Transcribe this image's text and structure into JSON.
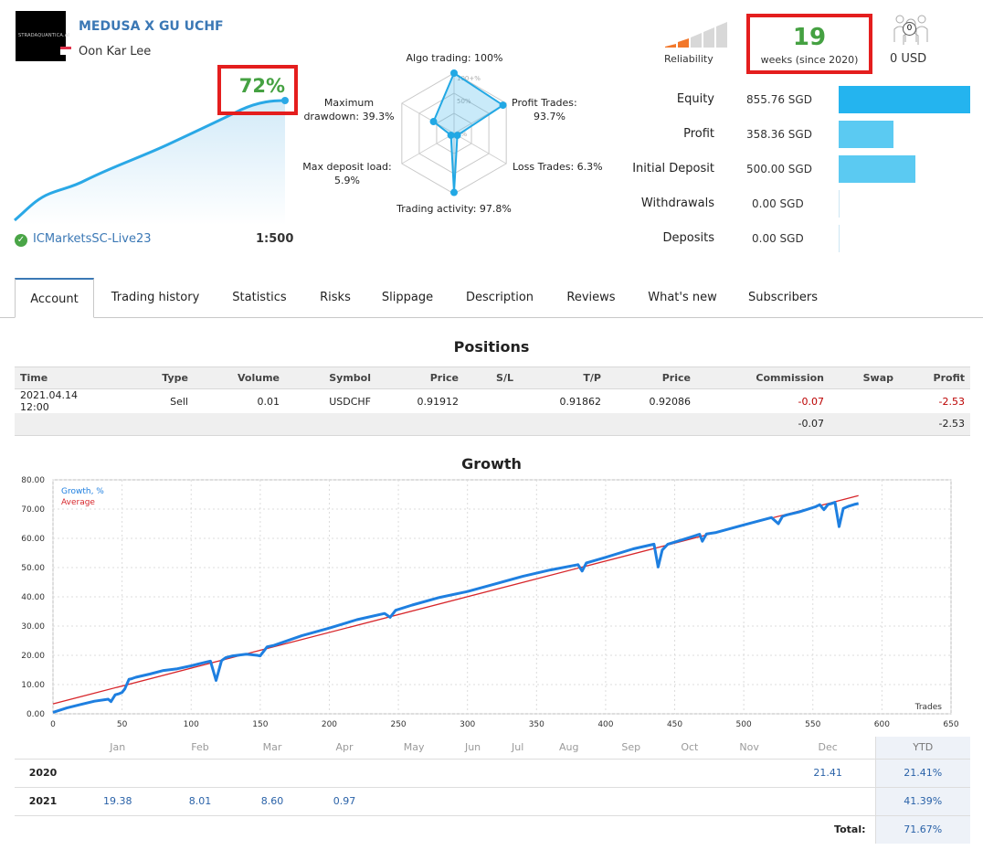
{
  "header": {
    "logo_text": "STRADAQUANTICA.AI",
    "signal_name": "MEDUSA X GU UCHF",
    "owner": "Oon Kar Lee",
    "broker": "ICMarketsSC-Live23",
    "leverage": "1:500",
    "growth_percent": "72%"
  },
  "radar": {
    "algo_trading": "Algo trading: 100%",
    "profit_trades": [
      "Profit Trades:",
      "93.7%"
    ],
    "loss_trades": "Loss Trades: 6.3%",
    "trading_activity": "Trading activity: 97.8%",
    "max_deposit_load": [
      "Max deposit load:",
      "5.9%"
    ],
    "max_drawdown": [
      "Maximum",
      "drawdown: 39.3%"
    ],
    "ring_labels": [
      "100+%",
      "50%",
      "0%"
    ],
    "values": {
      "algo_trading": 1.0,
      "profit_trades": 0.937,
      "loss_trades": 0.063,
      "trading_activity": 0.978,
      "max_deposit_load": 0.059,
      "max_drawdown": 0.393
    }
  },
  "reliability": {
    "label": "Reliability",
    "weeks": "19",
    "weeks_label": "weeks (since 2020)",
    "subscribers_count": "0",
    "subscribers_funds": "0 USD"
  },
  "stats": [
    {
      "label": "Equity",
      "value": "855.76 SGD",
      "ratio": 1.0,
      "color": "#24b4ef"
    },
    {
      "label": "Profit",
      "value": "358.36 SGD",
      "ratio": 0.4188,
      "color": "#5bcaf2"
    },
    {
      "label": "Initial Deposit",
      "value": "500.00 SGD",
      "ratio": 0.5843,
      "color": "#5bcaf2"
    },
    {
      "label": "Withdrawals",
      "value": "0.00 SGD",
      "ratio": 0,
      "color": "#5bcaf2"
    },
    {
      "label": "Deposits",
      "value": "0.00 SGD",
      "ratio": 0,
      "color": "#5bcaf2"
    }
  ],
  "tabs": [
    "Account",
    "Trading history",
    "Statistics",
    "Risks",
    "Slippage",
    "Description",
    "Reviews",
    "What's new",
    "Subscribers"
  ],
  "positions": {
    "title": "Positions",
    "columns": [
      "Time",
      "Type",
      "Volume",
      "Symbol",
      "Price",
      "S/L",
      "T/P",
      "Price",
      "Commission",
      "Swap",
      "Profit"
    ],
    "rows": [
      [
        "2021.04.14 12:00",
        "Sell",
        "0.01",
        "USDCHF",
        "0.91912",
        "",
        "0.91862",
        "0.92086",
        "-0.07",
        "",
        "-2.53"
      ]
    ],
    "totals": {
      "commission": "-0.07",
      "profit": "-2.53"
    }
  },
  "growth_title": "Growth",
  "chart_data": {
    "type": "line",
    "title": "Growth",
    "xlabel": "Trades",
    "ylabel": "",
    "xlim": [
      0,
      650
    ],
    "ylim": [
      0,
      80
    ],
    "x_ticks": [
      "0",
      "50",
      "100",
      "150",
      "200",
      "250",
      "300",
      "350",
      "400",
      "450",
      "500",
      "550",
      "600",
      "650"
    ],
    "y_ticks": [
      "0.00",
      "10.00",
      "20.00",
      "30.00",
      "40.00",
      "50.00",
      "60.00",
      "70.00",
      "80.00"
    ],
    "grid": true,
    "legend": "top-left",
    "series": [
      {
        "name": "Growth, %",
        "color": "#1e7fe0",
        "x": [
          0,
          10,
          20,
          30,
          40,
          42,
          45,
          48,
          50,
          52,
          55,
          57,
          58,
          60,
          70,
          80,
          90,
          100,
          110,
          114,
          118,
          122,
          125,
          130,
          140,
          148,
          150,
          155,
          160,
          180,
          200,
          220,
          240,
          244,
          248,
          260,
          280,
          300,
          320,
          340,
          360,
          380,
          383,
          386,
          400,
          420,
          435,
          438,
          441,
          445,
          460,
          468,
          470,
          473,
          480,
          500,
          520,
          525,
          528,
          531,
          540,
          552,
          555,
          558,
          561,
          563,
          566,
          569,
          572,
          576,
          580,
          583
        ],
        "values": [
          0.5,
          2.0,
          3.2,
          4.3,
          5.0,
          4.2,
          6.5,
          6.9,
          7.3,
          8.5,
          11.8,
          12.0,
          12.2,
          12.5,
          13.6,
          14.8,
          15.4,
          16.4,
          17.6,
          18.0,
          11.4,
          18.2,
          19.2,
          19.8,
          20.4,
          20.0,
          19.8,
          22.9,
          23.4,
          26.7,
          29.3,
          32.2,
          34.3,
          33.0,
          35.4,
          37.2,
          39.8,
          41.8,
          44.4,
          47.0,
          49.2,
          51.0,
          48.8,
          51.6,
          53.5,
          56.4,
          58.0,
          50.2,
          56.0,
          58.0,
          60.2,
          61.4,
          59.0,
          61.5,
          62.0,
          64.6,
          67.1,
          65.0,
          67.5,
          68.0,
          69.0,
          70.8,
          71.5,
          69.8,
          71.6,
          71.8,
          72.3,
          64.0,
          70.2,
          71.0,
          71.6,
          71.9
        ]
      },
      {
        "name": "Average",
        "color": "#d7262b",
        "x": [
          0,
          583
        ],
        "values": [
          3.4,
          74.6
        ]
      }
    ]
  },
  "monthly": {
    "months": [
      "Jan",
      "Feb",
      "Mar",
      "Apr",
      "May",
      "Jun",
      "Jul",
      "Aug",
      "Sep",
      "Oct",
      "Nov",
      "Dec"
    ],
    "ytd_header": "YTD",
    "rows": [
      {
        "year": "2020",
        "values": [
          "",
          "",
          "",
          "",
          "",
          "",
          "",
          "",
          "",
          "",
          "",
          "21.41"
        ],
        "ytd": "21.41%"
      },
      {
        "year": "2021",
        "values": [
          "19.38",
          "8.01",
          "8.60",
          "0.97",
          "",
          "",
          "",
          "",
          "",
          "",
          "",
          ""
        ],
        "ytd": "41.39%"
      }
    ],
    "total_label": "Total:",
    "total": "71.67%"
  }
}
